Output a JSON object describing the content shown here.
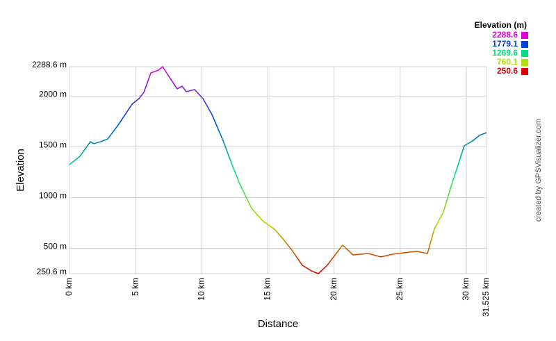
{
  "chart_data": {
    "type": "line",
    "y_label": "Elevation",
    "x_label": "Distance",
    "credit": "created by GPSVisualizer.com",
    "x": [
      0,
      0.79,
      1.58,
      1.84,
      2.36,
      2.89,
      3.68,
      4.73,
      5.25,
      5.62,
      6.15,
      6.72,
      7.04,
      7.62,
      8.14,
      8.51,
      8.83,
      9.46,
      10.09,
      10.77,
      11.56,
      12.35,
      12.87,
      13.77,
      14.61,
      15.5,
      16.18,
      16.81,
      17.6,
      18.28,
      18.81,
      19.44,
      19.96,
      20.65,
      21.44,
      22.59,
      23.54,
      24.43,
      25.74,
      26.27,
      27.06,
      27.58,
      28.27,
      28.9,
      29.42,
      29.84,
      30.47,
      31.0,
      31.525
    ],
    "values": [
      1324,
      1406,
      1550,
      1530,
      1550,
      1577,
      1714,
      1919,
      1974,
      2036,
      2227,
      2254,
      2288.6,
      2172,
      2070,
      2097,
      2043,
      2063,
      1974,
      1817,
      1577,
      1304,
      1133,
      893,
      770,
      688,
      586,
      483,
      333,
      278,
      250.6,
      326,
      415,
      531,
      435,
      449,
      415,
      442,
      463,
      470,
      449,
      688,
      859,
      1133,
      1338,
      1509,
      1557,
      1612,
      1639
    ],
    "xlim": [
      0,
      31.525
    ],
    "ylim": [
      250.6,
      2288.6
    ],
    "xticks": [
      {
        "value": 0,
        "label": "0 km"
      },
      {
        "value": 5,
        "label": "5 km"
      },
      {
        "value": 10,
        "label": "10 km"
      },
      {
        "value": 15,
        "label": "15 km"
      },
      {
        "value": 20,
        "label": "20 km"
      },
      {
        "value": 25,
        "label": "25 km"
      },
      {
        "value": 30,
        "label": "30 km"
      },
      {
        "value": 31.525,
        "label": "31.525 km"
      }
    ],
    "yticks": [
      {
        "value": 250.6,
        "label": "250.6 m"
      },
      {
        "value": 500,
        "label": "500 m"
      },
      {
        "value": 1000,
        "label": "1000 m"
      },
      {
        "value": 1500,
        "label": "1500 m"
      },
      {
        "value": 2000,
        "label": "2000 m"
      },
      {
        "value": 2288.6,
        "label": "2288.6 m"
      }
    ],
    "grid": true,
    "legend": {
      "title": "Elevation (m)",
      "items": [
        {
          "value": 2288.6,
          "color": "#e000e0"
        },
        {
          "value": 1779.1,
          "color": "#0044dd"
        },
        {
          "value": 1269.6,
          "color": "#00dd88"
        },
        {
          "value": 760.1,
          "color": "#b0e000"
        },
        {
          "value": 250.6,
          "color": "#dd0000"
        }
      ]
    }
  }
}
